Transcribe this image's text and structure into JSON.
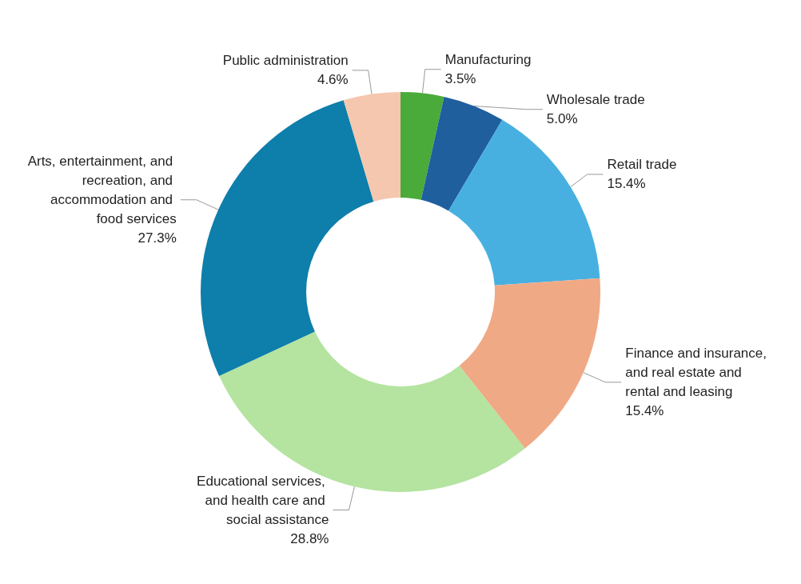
{
  "chart_data": {
    "type": "donut",
    "categories": [
      "Manufacturing",
      "Wholesale trade",
      "Retail trade",
      "Finance and insurance, and real estate and rental and leasing",
      "Educational services, and health care and social assistance",
      "Arts, entertainment, and recreation, and accommodation and food services",
      "Public administration"
    ],
    "values": [
      3.5,
      5.0,
      15.4,
      15.4,
      28.8,
      27.3,
      4.6
    ],
    "colors": [
      "#4aab3a",
      "#1f5f9e",
      "#47b0e0",
      "#f0a985",
      "#b4e4a0",
      "#0e7eab",
      "#f5c7ae"
    ],
    "value_labels": [
      "3.5%",
      "5.0%",
      "15.4%",
      "15.4%",
      "28.8%",
      "27.3%",
      "4.6%"
    ],
    "legend": false
  }
}
